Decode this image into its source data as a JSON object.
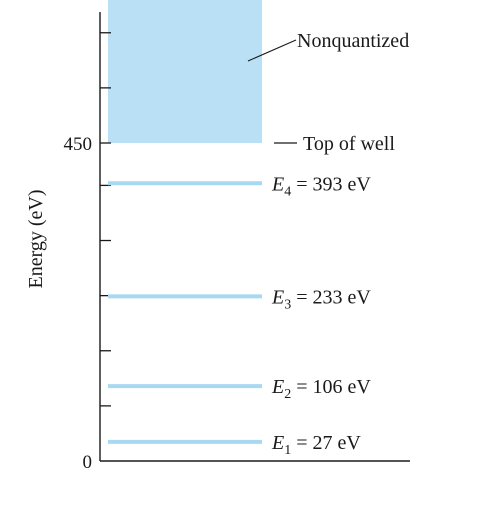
{
  "axis": {
    "ylabel": "Energy (eV)",
    "tick_labels": [
      "0",
      "450"
    ],
    "tick_values": [
      0,
      450
    ],
    "minor_ticks": [
      0,
      78,
      156,
      234,
      312,
      390,
      450,
      528,
      606,
      684
    ],
    "ylim": [
      0,
      690
    ]
  },
  "well_top": {
    "value": 450,
    "label": "Top of well"
  },
  "continuum": {
    "from": 450,
    "to": 690,
    "label": "Nonquantized"
  },
  "levels": [
    {
      "symbol": "E",
      "n": "1",
      "value": 27,
      "text": " = 27 eV"
    },
    {
      "symbol": "E",
      "n": "2",
      "value": 106,
      "text": " = 106 eV"
    },
    {
      "symbol": "E",
      "n": "3",
      "value": 233,
      "text": " = 233 eV"
    },
    {
      "symbol": "E",
      "n": "4",
      "value": 393,
      "text": " = 393 eV"
    }
  ],
  "colors": {
    "level": "#a9d8f2",
    "continuum": "#b9e0f5",
    "axis": "#1a1a1a"
  }
}
